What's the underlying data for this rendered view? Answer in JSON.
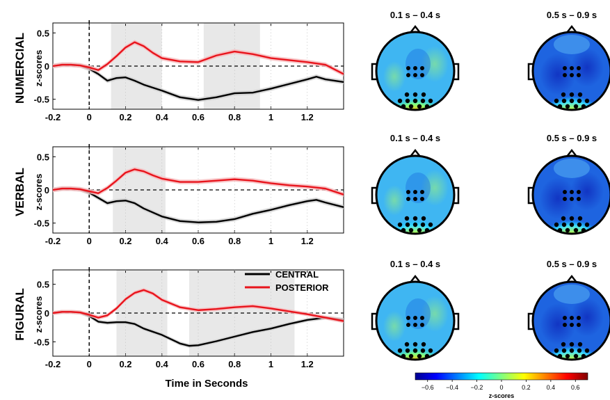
{
  "chart_data": [
    {
      "type": "line",
      "title": "NUMERCIAL",
      "ylabel": "z-scores",
      "xlabel": "",
      "xlim": [
        -0.2,
        1.4
      ],
      "ylim": [
        -0.65,
        0.65
      ],
      "xticks": [
        "-0.2",
        "0",
        "0.2",
        "0.4",
        "0.6",
        "0.8",
        "1",
        "1.2"
      ],
      "yticks": [
        "0.5",
        "0",
        "-0.5"
      ],
      "shaded_windows": [
        [
          0.12,
          0.4
        ],
        [
          0.63,
          0.94
        ]
      ],
      "series": [
        {
          "name": "CENTRAL",
          "color": "#000000",
          "x": [
            -0.2,
            -0.15,
            -0.1,
            -0.05,
            0,
            0.05,
            0.1,
            0.15,
            0.2,
            0.25,
            0.3,
            0.4,
            0.5,
            0.6,
            0.7,
            0.8,
            0.9,
            1.0,
            1.1,
            1.2,
            1.25,
            1.3,
            1.4
          ],
          "y": [
            0.0,
            0.02,
            0.02,
            0.01,
            -0.04,
            -0.12,
            -0.22,
            -0.18,
            -0.17,
            -0.22,
            -0.28,
            -0.37,
            -0.47,
            -0.51,
            -0.47,
            -0.41,
            -0.4,
            -0.34,
            -0.27,
            -0.2,
            -0.16,
            -0.2,
            -0.24
          ]
        },
        {
          "name": "POSTERIOR",
          "color": "#e8141c",
          "x": [
            -0.2,
            -0.15,
            -0.1,
            -0.05,
            0,
            0.05,
            0.1,
            0.15,
            0.2,
            0.25,
            0.3,
            0.35,
            0.4,
            0.5,
            0.6,
            0.7,
            0.8,
            0.9,
            1.0,
            1.1,
            1.2,
            1.3,
            1.4
          ],
          "y": [
            0.0,
            0.02,
            0.02,
            0.01,
            -0.02,
            -0.06,
            0.03,
            0.15,
            0.28,
            0.36,
            0.3,
            0.2,
            0.12,
            0.07,
            0.06,
            0.16,
            0.22,
            0.18,
            0.12,
            0.09,
            0.06,
            0.02,
            -0.12
          ]
        }
      ]
    },
    {
      "type": "line",
      "title": "VERBAL",
      "ylabel": "z-scores",
      "xlabel": "",
      "xlim": [
        -0.2,
        1.4
      ],
      "ylim": [
        -0.65,
        0.65
      ],
      "xticks": [
        "-0.2",
        "0",
        "0.2",
        "0.4",
        "0.6",
        "0.8",
        "1",
        "1.2"
      ],
      "yticks": [
        "0.5",
        "0",
        "-0.5"
      ],
      "shaded_windows": [
        [
          0.13,
          0.42
        ]
      ],
      "series": [
        {
          "name": "CENTRAL",
          "color": "#000000",
          "x": [
            -0.2,
            -0.15,
            -0.1,
            -0.05,
            0,
            0.05,
            0.1,
            0.15,
            0.2,
            0.25,
            0.3,
            0.4,
            0.5,
            0.6,
            0.7,
            0.8,
            0.9,
            1.0,
            1.1,
            1.2,
            1.25,
            1.3,
            1.4
          ],
          "y": [
            0.0,
            0.02,
            0.02,
            0.01,
            -0.04,
            -0.12,
            -0.2,
            -0.17,
            -0.16,
            -0.2,
            -0.28,
            -0.4,
            -0.47,
            -0.49,
            -0.48,
            -0.44,
            -0.36,
            -0.3,
            -0.23,
            -0.17,
            -0.15,
            -0.19,
            -0.26
          ]
        },
        {
          "name": "POSTERIOR",
          "color": "#e8141c",
          "x": [
            -0.2,
            -0.15,
            -0.1,
            -0.05,
            0,
            0.05,
            0.1,
            0.15,
            0.2,
            0.25,
            0.3,
            0.35,
            0.4,
            0.5,
            0.6,
            0.7,
            0.8,
            0.9,
            1.0,
            1.1,
            1.2,
            1.3,
            1.4
          ],
          "y": [
            0.0,
            0.02,
            0.02,
            0.01,
            -0.02,
            -0.05,
            0.03,
            0.14,
            0.26,
            0.31,
            0.28,
            0.22,
            0.17,
            0.12,
            0.12,
            0.14,
            0.16,
            0.14,
            0.1,
            0.07,
            0.05,
            0.02,
            -0.07
          ]
        }
      ]
    },
    {
      "type": "line",
      "title": "FIGURAL",
      "ylabel": "z-scores",
      "xlabel": "Time in Seconds",
      "xlim": [
        -0.2,
        1.4
      ],
      "ylim": [
        -0.75,
        0.75
      ],
      "xticks": [
        "-0.2",
        "0",
        "0.2",
        "0.4",
        "0.6",
        "0.8",
        "1",
        "1.2"
      ],
      "yticks": [
        "0.5",
        "0",
        "-0.5"
      ],
      "shaded_windows": [
        [
          0.15,
          0.43
        ],
        [
          0.55,
          1.13
        ]
      ],
      "legend": {
        "position": "top-right",
        "entries": [
          "CENTRAL",
          "POSTERIOR"
        ]
      },
      "series": [
        {
          "name": "CENTRAL",
          "color": "#000000",
          "x": [
            -0.2,
            -0.15,
            -0.1,
            -0.05,
            0,
            0.05,
            0.1,
            0.15,
            0.2,
            0.25,
            0.3,
            0.4,
            0.5,
            0.55,
            0.6,
            0.7,
            0.8,
            0.9,
            1.0,
            1.1,
            1.2,
            1.3,
            1.4
          ],
          "y": [
            0.0,
            0.02,
            0.02,
            0.01,
            -0.05,
            -0.15,
            -0.17,
            -0.16,
            -0.16,
            -0.19,
            -0.27,
            -0.38,
            -0.53,
            -0.57,
            -0.56,
            -0.49,
            -0.41,
            -0.33,
            -0.27,
            -0.19,
            -0.12,
            -0.08,
            -0.12
          ]
        },
        {
          "name": "POSTERIOR",
          "color": "#e8141c",
          "x": [
            -0.2,
            -0.15,
            -0.1,
            -0.05,
            0,
            0.05,
            0.1,
            0.15,
            0.2,
            0.25,
            0.3,
            0.35,
            0.4,
            0.5,
            0.6,
            0.7,
            0.8,
            0.9,
            1.0,
            1.1,
            1.2,
            1.3,
            1.4
          ],
          "y": [
            0.0,
            0.02,
            0.02,
            0.01,
            -0.03,
            -0.08,
            -0.04,
            0.08,
            0.24,
            0.35,
            0.4,
            0.34,
            0.23,
            0.1,
            0.05,
            0.07,
            0.1,
            0.12,
            0.08,
            0.03,
            -0.02,
            -0.08,
            -0.14
          ]
        }
      ]
    },
    {
      "type": "heatmap",
      "kind": "scalp-topographies",
      "window_labels": [
        "0.1 s – 0.4 s",
        "0.5 s – 0.9 s"
      ],
      "rows": [
        "NUMERCIAL",
        "VERBAL",
        "FIGURAL"
      ],
      "colorbar": {
        "label": "z-scores",
        "ticks": [
          "−0.6",
          "−0.4",
          "−0.2",
          "0",
          "0.2",
          "0.4",
          "0.6"
        ],
        "range": [
          -0.7,
          0.7
        ],
        "colormap": "jet"
      }
    }
  ],
  "legend": {
    "central": "CENTRAL",
    "posterior": "POSTERIOR"
  },
  "colors": {
    "central": "#000000",
    "posterior": "#e8141c",
    "shade": "#e8e8e8",
    "ci_central": "#cfcfcf",
    "ci_posterior": "#f6b9bb"
  }
}
